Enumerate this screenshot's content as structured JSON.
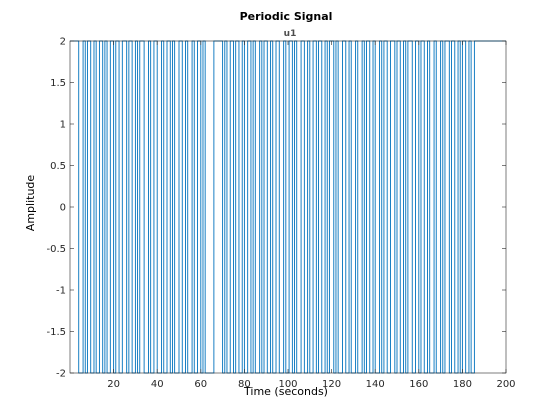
{
  "chart_data": {
    "type": "line",
    "title": "Periodic Signal",
    "subtitle": "u1",
    "xlabel": "Time (seconds)",
    "ylabel": "Amplitude",
    "xlim": [
      0,
      200
    ],
    "ylim": [
      -2,
      2
    ],
    "xticks": [
      20,
      40,
      60,
      80,
      100,
      120,
      140,
      160,
      180,
      200
    ],
    "yticks": [
      -2,
      -1.5,
      -1,
      -0.5,
      0,
      0.5,
      1,
      1.5,
      2
    ],
    "ytick_labels": [
      "-2",
      "-1.5",
      "-1",
      "-0.5",
      "0",
      "0.5",
      "1",
      "1.5",
      "2"
    ],
    "grid": false,
    "colors": {
      "series": "#0072bd",
      "axes": "#262626",
      "background": "#ffffff"
    },
    "series": [
      {
        "signal": "binary",
        "levels": [
          -2,
          2
        ],
        "switch_times": [
          4,
          6,
          7,
          8,
          9.5,
          11,
          12,
          13.5,
          15,
          16,
          17,
          18.5,
          20,
          21,
          22.5,
          24,
          26,
          27,
          28.5,
          30,
          31,
          32,
          34,
          36,
          37,
          38.5,
          40,
          42,
          43,
          44.5,
          46,
          47,
          48,
          50,
          51.5,
          53,
          54,
          56,
          57,
          58.5,
          60,
          61,
          62,
          66,
          70,
          71,
          72,
          73.5,
          75,
          76,
          77.5,
          79,
          80,
          81.5,
          83,
          84,
          85,
          87,
          88,
          89,
          90.5,
          92,
          93,
          94.5,
          96,
          98,
          99,
          100.5,
          102,
          103,
          104,
          106,
          107.5,
          109,
          110,
          111.5,
          113,
          114,
          115.5,
          117,
          118,
          119,
          121,
          122,
          123,
          125,
          126.5,
          128,
          129,
          131,
          132,
          134,
          135,
          136,
          137.5,
          139,
          140,
          142,
          143,
          144,
          145.5,
          147,
          149,
          150,
          151.5,
          153,
          154,
          155,
          157,
          158.5,
          160,
          161,
          162.5,
          164,
          165,
          167,
          168,
          170,
          171,
          172,
          174,
          175,
          176.5,
          178,
          179,
          180,
          181.5,
          183,
          184,
          185.5
        ],
        "end_time": 200
      }
    ]
  }
}
